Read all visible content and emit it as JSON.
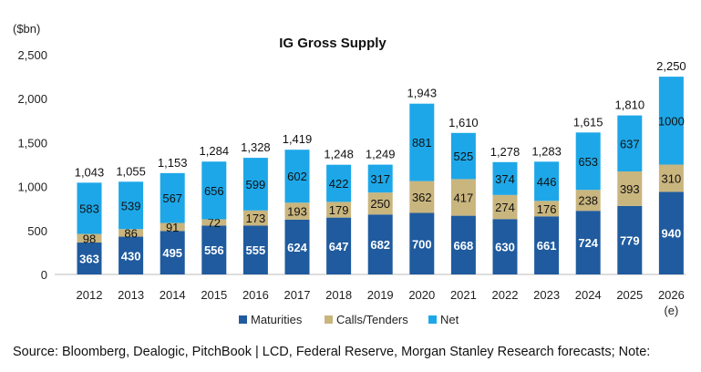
{
  "chart_data": {
    "type": "bar",
    "stacked": true,
    "title": "IG Gross Supply",
    "ylabel": "($bn)",
    "ylim": [
      0,
      2500
    ],
    "yticks": [
      "0",
      "500",
      "1,000",
      "1,500",
      "2,000",
      "2,500"
    ],
    "categories": [
      "2012",
      "2013",
      "2014",
      "2015",
      "2016",
      "2017",
      "2018",
      "2019",
      "2020",
      "2021",
      "2022",
      "2023",
      "2024",
      "2025",
      "2026"
    ],
    "category_sublabels": [
      "",
      "",
      "",
      "",
      "",
      "",
      "",
      "",
      "",
      "",
      "",
      "",
      "",
      "",
      "(e)"
    ],
    "series": [
      {
        "name": "Maturities",
        "color": "#1f5b9e",
        "label_color": "#ffffff",
        "values": [
          363,
          430,
          495,
          556,
          555,
          624,
          647,
          682,
          700,
          668,
          630,
          661,
          724,
          779,
          940
        ]
      },
      {
        "name": "Calls/Tenders",
        "color": "#c9b57e",
        "label_color": "#111111",
        "values": [
          98,
          86,
          91,
          72,
          173,
          193,
          179,
          250,
          362,
          417,
          274,
          176,
          238,
          393,
          310
        ]
      },
      {
        "name": "Net",
        "color": "#1da7e8",
        "label_color": "#111111",
        "values": [
          583,
          539,
          567,
          656,
          599,
          602,
          422,
          317,
          881,
          525,
          374,
          446,
          653,
          637,
          1000
        ]
      }
    ],
    "totals": [
      "1,043",
      "1,055",
      "1,153",
      "1,284",
      "1,328",
      "1,419",
      "1,248",
      "1,249",
      "1,943",
      "1,610",
      "1,278",
      "1,283",
      "1,615",
      "1,810",
      "2,250"
    ],
    "legend_position": "bottom",
    "grid": false
  },
  "source_note": "Source: Bloomberg, Dealogic, PitchBook | LCD, Federal Reserve, Morgan Stanley Research forecasts; Note:"
}
